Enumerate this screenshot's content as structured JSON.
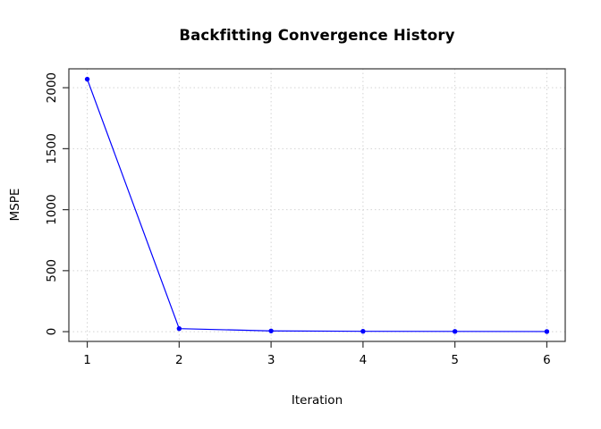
{
  "chart_data": {
    "type": "line",
    "title": "Backfitting Convergence History",
    "xlabel": "Iteration",
    "ylabel": "MSPE",
    "x": [
      1,
      2,
      3,
      4,
      5,
      6
    ],
    "y": [
      2070,
      25,
      6,
      3,
      2,
      1
    ],
    "series_name": "MSPE",
    "xticks": [
      1,
      2,
      3,
      4,
      5,
      6
    ],
    "xtick_labels": [
      "1",
      "2",
      "3",
      "4",
      "5",
      "6"
    ],
    "yticks": [
      0,
      500,
      1000,
      1500,
      2000
    ],
    "ytick_labels": [
      "0",
      "500",
      "1000",
      "1500",
      "2000"
    ],
    "xlim": [
      0.8,
      6.2
    ],
    "ylim": [
      -80,
      2155
    ],
    "grid": "dotted",
    "legend_position": "none",
    "line_color": "#0000ff",
    "marker": "filled-circle",
    "grid_color": "#d3d3d3",
    "axis_color": "#333333",
    "text_color": "#000000",
    "background_color": "#ffffff"
  }
}
